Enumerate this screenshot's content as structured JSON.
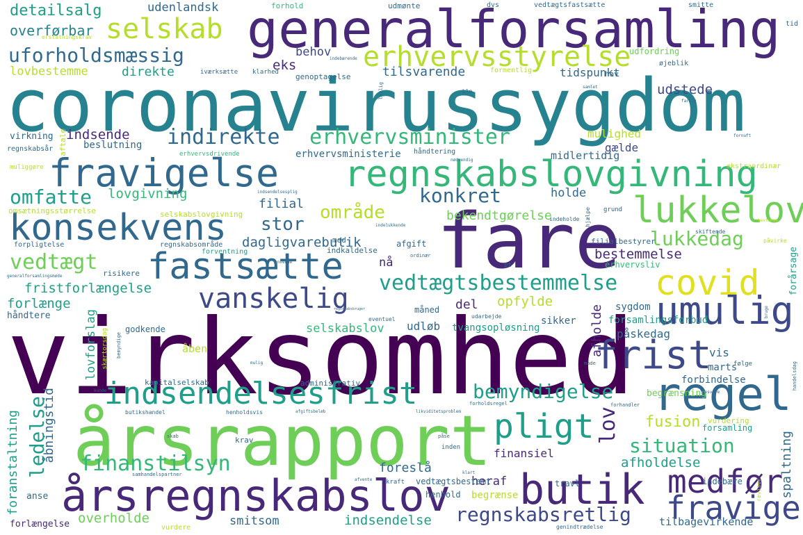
{
  "palette": {
    "purple": "#440154",
    "indigo": "#482878",
    "blue": "#3e4989",
    "slate": "#31688e",
    "teal": "#26828e",
    "sea": "#1f9e89",
    "green": "#35b779",
    "lime": "#6ece58",
    "chartreuse": "#b5de2b",
    "yellow": "#e0e020"
  },
  "words": [
    {
      "text": "coronavirussygdom",
      "color": "teal"
    },
    {
      "text": "virksomhed",
      "color": "purple"
    },
    {
      "text": "generalforsamling",
      "color": "indigo"
    },
    {
      "text": "fare",
      "color": "indigo"
    },
    {
      "text": "årsrapport",
      "color": "lime"
    },
    {
      "text": "årsregnskabslov",
      "color": "indigo"
    },
    {
      "text": "fravigelse",
      "color": "slate"
    },
    {
      "text": "regnskabslovgivning",
      "color": "green"
    },
    {
      "text": "erhvervsstyrelse",
      "color": "chartreuse"
    },
    {
      "text": "indsendelsesfrist",
      "color": "sea"
    },
    {
      "text": "konsekvens",
      "color": "slate"
    },
    {
      "text": "lukkelov",
      "color": "lime"
    },
    {
      "text": "fastsætte",
      "color": "slate"
    },
    {
      "text": "regel",
      "color": "slate"
    },
    {
      "text": "umulig",
      "color": "blue"
    },
    {
      "text": "covid",
      "color": "yellow"
    },
    {
      "text": "frist",
      "color": "blue"
    },
    {
      "text": "butik",
      "color": "indigo"
    },
    {
      "text": "medfør",
      "color": "indigo"
    },
    {
      "text": "fravige",
      "color": "blue"
    },
    {
      "text": "pligt",
      "color": "sea"
    },
    {
      "text": "selskab",
      "color": "chartreuse"
    },
    {
      "text": "uforholdsmæssig",
      "color": "slate"
    },
    {
      "text": "vedtægtsbestemmelse",
      "color": "sea"
    },
    {
      "text": "vanskelig",
      "color": "blue"
    },
    {
      "text": "erhvervsminister",
      "color": "green"
    },
    {
      "text": "indirekte",
      "color": "slate"
    },
    {
      "text": "bemyndigelse",
      "color": "sea"
    },
    {
      "text": "regnskabsretlig",
      "color": "blue"
    },
    {
      "text": "omfatte",
      "color": "sea"
    },
    {
      "text": "vedtægt",
      "color": "lime"
    },
    {
      "text": "finanstilsyn",
      "color": "green"
    },
    {
      "text": "situation",
      "color": "green"
    },
    {
      "text": "konkret",
      "color": "slate"
    },
    {
      "text": "lukkedag",
      "color": "lime"
    },
    {
      "text": "område",
      "color": "chartreuse"
    },
    {
      "text": "stor",
      "color": "slate"
    },
    {
      "text": "ledelse",
      "color": "sea"
    },
    {
      "text": "lov",
      "color": "indigo"
    },
    {
      "text": "fusion",
      "color": "chartreuse"
    },
    {
      "text": "detailsalg",
      "color": "sea"
    },
    {
      "text": "overførbar",
      "color": "teal"
    },
    {
      "text": "lovbestemme",
      "color": "chartreuse"
    },
    {
      "text": "direkte",
      "color": "sea"
    },
    {
      "text": "udenlandsk",
      "color": "slate"
    },
    {
      "text": "eks",
      "color": "indigo"
    },
    {
      "text": "behov",
      "color": "blue"
    },
    {
      "text": "tilsvarende",
      "color": "slate"
    },
    {
      "text": "udstede",
      "color": "blue"
    },
    {
      "text": "tidspunkt",
      "color": "slate"
    },
    {
      "text": "indsende",
      "color": "indigo"
    },
    {
      "text": "beslutning",
      "color": "slate"
    },
    {
      "text": "erhvervsministerie",
      "color": "slate"
    },
    {
      "text": "lovgivning",
      "color": "green"
    },
    {
      "text": "filial",
      "color": "slate"
    },
    {
      "text": "dagligvarebutik",
      "color": "slate"
    },
    {
      "text": "bekendtgørelse",
      "color": "lime"
    },
    {
      "text": "holde",
      "color": "slate"
    },
    {
      "text": "mulighed",
      "color": "chartreuse"
    },
    {
      "text": "gælde",
      "color": "blue"
    },
    {
      "text": "midlertidig",
      "color": "slate"
    },
    {
      "text": "bestemmelse",
      "color": "indigo"
    },
    {
      "text": "filialbestyrer",
      "color": "slate"
    },
    {
      "text": "erhvervsliv",
      "color": "green"
    },
    {
      "text": "nå",
      "color": "indigo"
    },
    {
      "text": "fristforlængelse",
      "color": "sea"
    },
    {
      "text": "forlænge",
      "color": "sea"
    },
    {
      "text": "håndtere",
      "color": "slate"
    },
    {
      "text": "lovforslag",
      "color": "sea"
    },
    {
      "text": "godkende",
      "color": "slate"
    },
    {
      "text": "selskabslov",
      "color": "green"
    },
    {
      "text": "del",
      "color": "indigo"
    },
    {
      "text": "opfylde",
      "color": "chartreuse"
    },
    {
      "text": "udløb",
      "color": "slate"
    },
    {
      "text": "måned",
      "color": "slate"
    },
    {
      "text": "tvangsopløsning",
      "color": "sea"
    },
    {
      "text": "afholde",
      "color": "indigo"
    },
    {
      "text": "sygdom",
      "color": "slate"
    },
    {
      "text": "sikker",
      "color": "slate"
    },
    {
      "text": "påskedag",
      "color": "slate"
    },
    {
      "text": "forsamlingsforbud",
      "color": "sea"
    },
    {
      "text": "vis",
      "color": "slate"
    },
    {
      "text": "marts",
      "color": "slate"
    },
    {
      "text": "forårsage",
      "color": "sea"
    },
    {
      "text": "åbningstid",
      "color": "slate"
    },
    {
      "text": "foranstaltning",
      "color": "sea"
    },
    {
      "text": "kapitalselskab",
      "color": "slate"
    },
    {
      "text": "administrativ",
      "color": "slate"
    },
    {
      "text": "begrænsning",
      "color": "lime"
    },
    {
      "text": "forbindelse",
      "color": "slate"
    },
    {
      "text": "finansiel",
      "color": "indigo"
    },
    {
      "text": "foreslå",
      "color": "slate"
    },
    {
      "text": "afholdelse",
      "color": "sea"
    },
    {
      "text": "spaltning",
      "color": "slate"
    },
    {
      "text": "heraf",
      "color": "indigo"
    },
    {
      "text": "vedtægtsbestemt",
      "color": "slate"
    },
    {
      "text": "travl",
      "color": "slate"
    },
    {
      "text": "henhold",
      "color": "slate"
    },
    {
      "text": "begrænse",
      "color": "chartreuse"
    },
    {
      "text": "indebære",
      "color": "slate"
    },
    {
      "text": "forsamling",
      "color": "sea"
    },
    {
      "text": "vurdering",
      "color": "chartreuse"
    },
    {
      "text": "anse",
      "color": "slate"
    },
    {
      "text": "overholde",
      "color": "lime"
    },
    {
      "text": "smitsom",
      "color": "slate"
    },
    {
      "text": "indsendelse",
      "color": "sea"
    },
    {
      "text": "tilbagevirkende",
      "color": "slate"
    },
    {
      "text": "forlængelse",
      "color": "indigo"
    },
    {
      "text": "krav",
      "color": "slate"
    },
    {
      "text": "afgift",
      "color": "slate"
    },
    {
      "text": "indkaldelse",
      "color": "slate"
    },
    {
      "text": "mod",
      "color": "slate"
    },
    {
      "text": "forventning",
      "color": "sea"
    },
    {
      "text": "selskabslovgivning",
      "color": "chartreuse"
    },
    {
      "text": "omsætningsstørrelse",
      "color": "chartreuse"
    },
    {
      "text": "forpligtelse",
      "color": "slate"
    },
    {
      "text": "risikere",
      "color": "slate"
    },
    {
      "text": "regnskabsområde",
      "color": "slate"
    },
    {
      "text": "virkning",
      "color": "slate"
    },
    {
      "text": "regnskabsår",
      "color": "slate"
    },
    {
      "text": "aftale",
      "color": "chartreuse"
    },
    {
      "text": "erhvervsdrivende",
      "color": "green"
    },
    {
      "text": "genoptagelse",
      "color": "slate"
    },
    {
      "text": "iværksætte",
      "color": "slate"
    },
    {
      "text": "klarhed",
      "color": "slate"
    },
    {
      "text": "hav",
      "color": "slate"
    },
    {
      "text": "udfordring",
      "color": "lime"
    },
    {
      "text": "øjeblik",
      "color": "slate"
    },
    {
      "text": "formentlig",
      "color": "chartreuse"
    },
    {
      "text": "forhold",
      "color": "green"
    },
    {
      "text": "udmønte",
      "color": "slate"
    },
    {
      "text": "dvs",
      "color": "slate"
    },
    {
      "text": "vedtægtsfastsætte",
      "color": "slate"
    },
    {
      "text": "smitte",
      "color": "slate"
    },
    {
      "text": "tid",
      "color": "slate"
    },
    {
      "text": "erstatningskrav",
      "color": "chartreuse"
    },
    {
      "text": "håndtering",
      "color": "slate"
    },
    {
      "text": "muliggøre",
      "color": "chartreuse"
    },
    {
      "text": "ekstraordinær",
      "color": "chartreuse"
    },
    {
      "text": "grund",
      "color": "slate"
    },
    {
      "text": "hjælpe",
      "color": "slate"
    },
    {
      "text": "indeholde",
      "color": "slate"
    },
    {
      "text": "pt",
      "color": "slate"
    },
    {
      "text": "påvirke",
      "color": "chartreuse"
    },
    {
      "text": "skiftende",
      "color": "slate"
    },
    {
      "text": "ordinær",
      "color": "slate"
    },
    {
      "text": "generalforsamlingsmøde",
      "color": "slate"
    },
    {
      "text": "ble",
      "color": "slate"
    },
    {
      "text": "lovlig",
      "color": "slate"
    },
    {
      "text": "fornuft",
      "color": "slate"
    },
    {
      "text": "udarbejde",
      "color": "slate"
    },
    {
      "text": "eventuel",
      "color": "slate"
    },
    {
      "text": "skærtorsdag",
      "color": "chartreuse"
    },
    {
      "text": "åben",
      "color": "chartreuse"
    },
    {
      "text": "bemyndige",
      "color": "slate"
    },
    {
      "text": "følge",
      "color": "slate"
    },
    {
      "text": "mulig",
      "color": "slate"
    },
    {
      "text": "måde",
      "color": "slate"
    },
    {
      "text": "butikshandel",
      "color": "slate"
    },
    {
      "text": "henholdsvis",
      "color": "slate"
    },
    {
      "text": "afgiftsbeløb",
      "color": "slate"
    },
    {
      "text": "forholdsregel",
      "color": "slate"
    },
    {
      "text": "likviditetsproblem",
      "color": "slate"
    },
    {
      "text": "inden",
      "color": "slate"
    },
    {
      "text": "påse",
      "color": "slate"
    },
    {
      "text": "kraft",
      "color": "slate"
    },
    {
      "text": "afvente",
      "color": "slate"
    },
    {
      "text": "vurdere",
      "color": "chartreuse"
    },
    {
      "text": "genindtrædelse",
      "color": "slate"
    },
    {
      "text": "revisor",
      "color": "chartreuse"
    },
    {
      "text": "handelsdag",
      "color": "slate"
    },
    {
      "text": "forhandler",
      "color": "slate"
    },
    {
      "text": "skab",
      "color": "slate"
    },
    {
      "text": "bruge",
      "color": "slate"
    },
    {
      "text": "besvare",
      "color": "slate"
    },
    {
      "text": "samhandelspartner",
      "color": "slate"
    },
    {
      "text": "klart",
      "color": "slate"
    },
    {
      "text": "kunde",
      "color": "slate"
    },
    {
      "text": "regnskabsbruger",
      "color": "slate"
    },
    {
      "text": "indelukkende",
      "color": "slate"
    },
    {
      "text": "indsendelsesplig",
      "color": "slate"
    },
    {
      "text": "nødvendig",
      "color": "slate"
    },
    {
      "text": "anvende",
      "color": "slate"
    },
    {
      "text": "samlet",
      "color": "slate"
    },
    {
      "text": "indebærende",
      "color": "slate"
    },
    {
      "text": "farlig",
      "color": "slate"
    },
    {
      "text": "bestemme",
      "color": "chartreuse"
    }
  ]
}
